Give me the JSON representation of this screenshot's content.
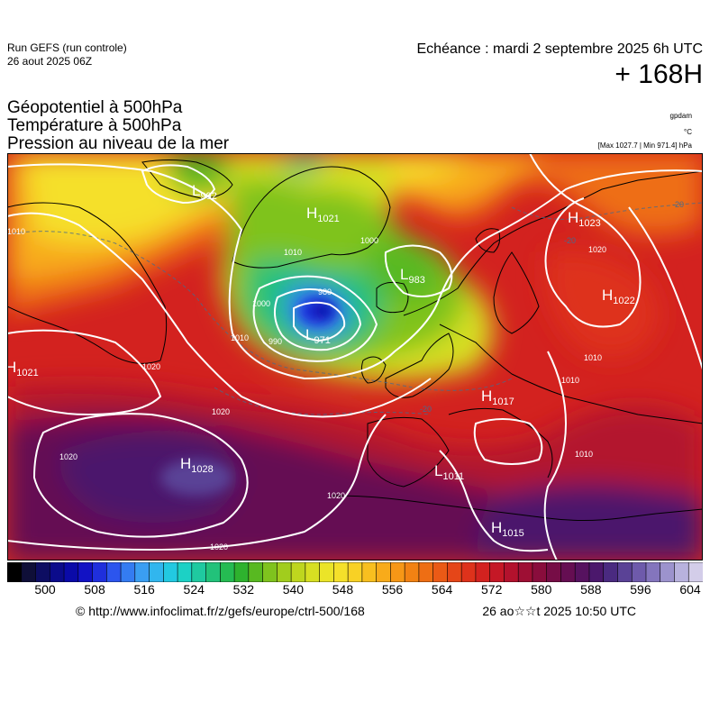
{
  "header": {
    "run_title": "Run GEFS (run controle)",
    "run_date": "26 aout 2025 06Z",
    "echeance": "Echéance : mardi 2 septembre 2025 6h UTC",
    "lead_time": "+ 168H"
  },
  "parameters": [
    "Géopotentiel à 500hPa",
    "Température à 500hPa",
    "Pression au niveau de la mer"
  ],
  "units": {
    "geopotential": "gpdam",
    "temperature": "°C",
    "pressure_maxmin": "[Max 1027.7 | Min 971.4] hPa"
  },
  "pressure_centers": [
    {
      "type": "H",
      "value": "1021",
      "region": "greenland"
    },
    {
      "type": "L",
      "value": "992",
      "region": "baffin"
    },
    {
      "type": "L",
      "value": "983",
      "region": "norwegian-sea"
    },
    {
      "type": "L",
      "value": "971",
      "region": "iceland"
    },
    {
      "type": "H",
      "value": "1023",
      "region": "northwest-russia"
    },
    {
      "type": "H",
      "value": "1022",
      "region": "russia"
    },
    {
      "type": "H",
      "value": "1021",
      "region": "canada-east"
    },
    {
      "type": "H",
      "value": "1028",
      "region": "azores"
    },
    {
      "type": "H",
      "value": "1017",
      "region": "central-europe"
    },
    {
      "type": "L",
      "value": "1011",
      "region": "spain"
    },
    {
      "type": "H",
      "value": "1015",
      "region": "north-africa"
    }
  ],
  "isobar_labels": [
    "1010",
    "1010",
    "1020",
    "1020",
    "1020",
    "1020",
    "1010",
    "1000",
    "1000",
    "990",
    "980",
    "1010",
    "1010",
    "1020",
    "1020",
    "1010"
  ],
  "isotherm_labels": [
    "-20",
    "-20",
    "-20"
  ],
  "colorbar": {
    "ticks": [
      "500",
      "508",
      "516",
      "524",
      "532",
      "540",
      "548",
      "556",
      "564",
      "572",
      "580",
      "588",
      "596",
      "604"
    ],
    "colors": [
      "#000000",
      "#0f0f38",
      "#0d0d62",
      "#0b0b8b",
      "#0a0aa8",
      "#1212c4",
      "#1f2fdc",
      "#2c55ee",
      "#347cf2",
      "#3a9ef2",
      "#31b6ee",
      "#22c9e1",
      "#1cd1c5",
      "#1fc9a0",
      "#22c27a",
      "#25bb52",
      "#2eb22e",
      "#58b921",
      "#7fc31e",
      "#a1cd1d",
      "#bed61e",
      "#d7df22",
      "#ebe428",
      "#f5e02a",
      "#f8d125",
      "#f8bf1f",
      "#f8ab1a",
      "#f69716",
      "#f28213",
      "#ee6e14",
      "#ea5a16",
      "#e54618",
      "#de321b",
      "#d3221f",
      "#c51826",
      "#b3122d",
      "#9e0f34",
      "#890d3c",
      "#760d46",
      "#650e52",
      "#56125f",
      "#4b186c",
      "#4a2a80",
      "#5a4296",
      "#6e5aab",
      "#8475bd",
      "#9c93cd",
      "#b8b2dd",
      "#d3cde9"
    ],
    "min": 500,
    "max": 604
  },
  "footer": {
    "source": "© http://www.infoclimat.fr/z/gefs/europe/ctrl-500/168",
    "generated": "26 ao☆☆t 2025 10:50 UTC"
  }
}
